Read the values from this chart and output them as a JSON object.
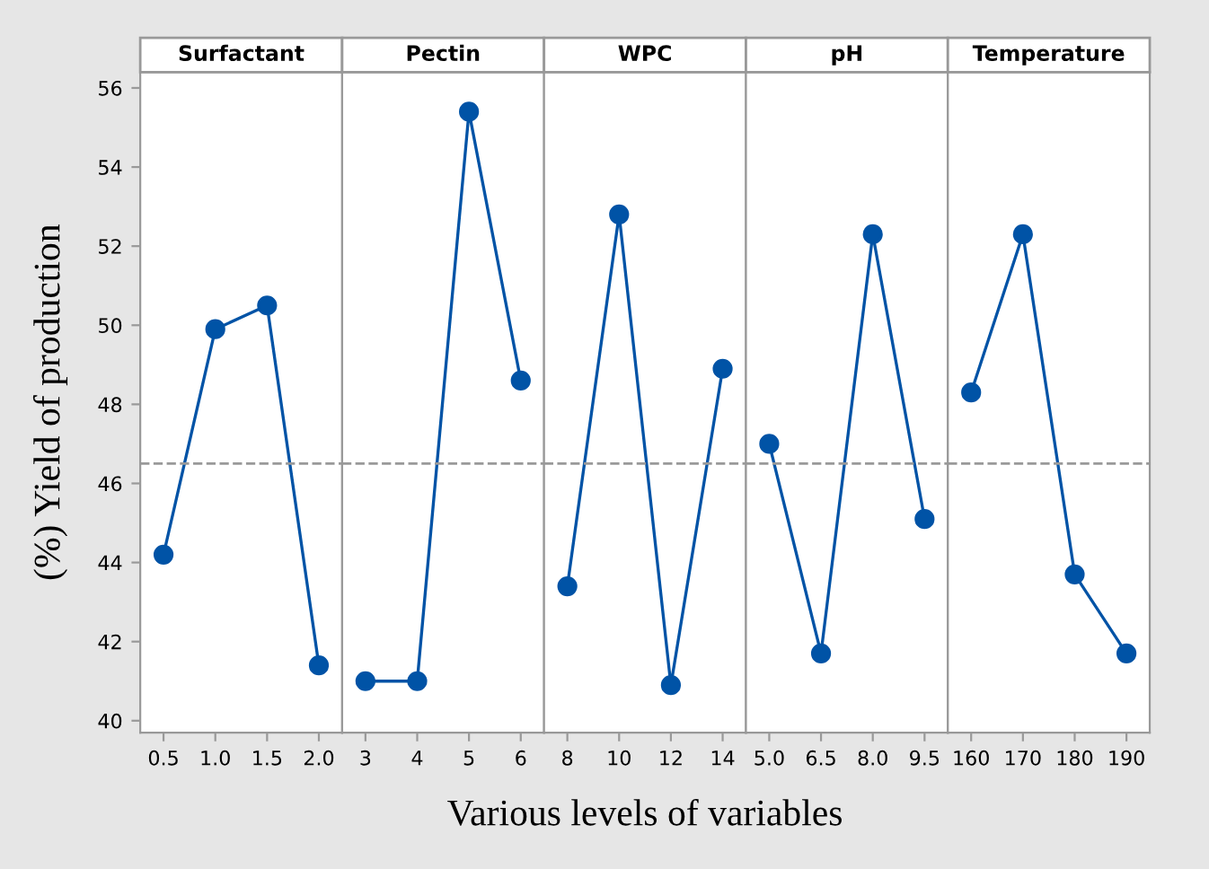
{
  "chart_data": [
    {
      "type": "line",
      "title": "Surfactant",
      "ylabel": "(%) Yield of production",
      "categories": [
        "0.5",
        "1.0",
        "1.5",
        "2.0"
      ],
      "series": [
        {
          "color": "#0053a6",
          "values": [
            44.2,
            49.9,
            50.5,
            41.4
          ]
        }
      ],
      "ylim": [
        39.7,
        56.4
      ],
      "yticks": [
        40,
        42,
        44,
        46,
        48,
        50,
        52,
        54,
        56
      ],
      "marker": "circle",
      "ref_lines": [
        {
          "axis": "y",
          "value": 46.5,
          "color": "#999999",
          "line_style": "dashed"
        }
      ]
    },
    {
      "type": "line",
      "title": "Pectin",
      "categories": [
        "3",
        "4",
        "5",
        "6"
      ],
      "series": [
        {
          "color": "#0053a6",
          "values": [
            41.0,
            41.0,
            55.4,
            48.6
          ]
        }
      ],
      "ylim": [
        39.7,
        56.4
      ],
      "tick_labels": "x",
      "marker": "circle",
      "ref_lines": [
        {
          "axis": "y",
          "value": 46.5,
          "color": "#999999",
          "line_style": "dashed"
        }
      ]
    },
    {
      "type": "line",
      "title": "WPC",
      "xlabel": "Various levels of variables",
      "categories": [
        "8",
        "10",
        "12",
        "14"
      ],
      "series": [
        {
          "color": "#0053a6",
          "values": [
            43.4,
            52.8,
            40.9,
            48.9
          ]
        }
      ],
      "ylim": [
        39.7,
        56.4
      ],
      "tick_labels": "x",
      "marker": "circle",
      "ref_lines": [
        {
          "axis": "y",
          "value": 46.5,
          "color": "#999999",
          "line_style": "dashed"
        }
      ]
    },
    {
      "type": "line",
      "title": "pH",
      "categories": [
        "5.0",
        "6.5",
        "8.0",
        "9.5"
      ],
      "series": [
        {
          "color": "#0053a6",
          "values": [
            47.0,
            41.7,
            52.3,
            45.1
          ]
        }
      ],
      "ylim": [
        39.7,
        56.4
      ],
      "tick_labels": "x",
      "marker": "circle",
      "ref_lines": [
        {
          "axis": "y",
          "value": 46.5,
          "color": "#999999",
          "line_style": "dashed"
        }
      ]
    },
    {
      "type": "line",
      "title": "Temperature",
      "categories": [
        "160",
        "170",
        "180",
        "190"
      ],
      "series": [
        {
          "color": "#0053a6",
          "values": [
            48.3,
            52.3,
            43.7,
            41.7
          ]
        }
      ],
      "ylim": [
        39.7,
        56.4
      ],
      "tick_labels": "x",
      "marker": "circle",
      "ref_lines": [
        {
          "axis": "y",
          "value": 46.5,
          "color": "#999999",
          "line_style": "dashed"
        }
      ]
    }
  ]
}
